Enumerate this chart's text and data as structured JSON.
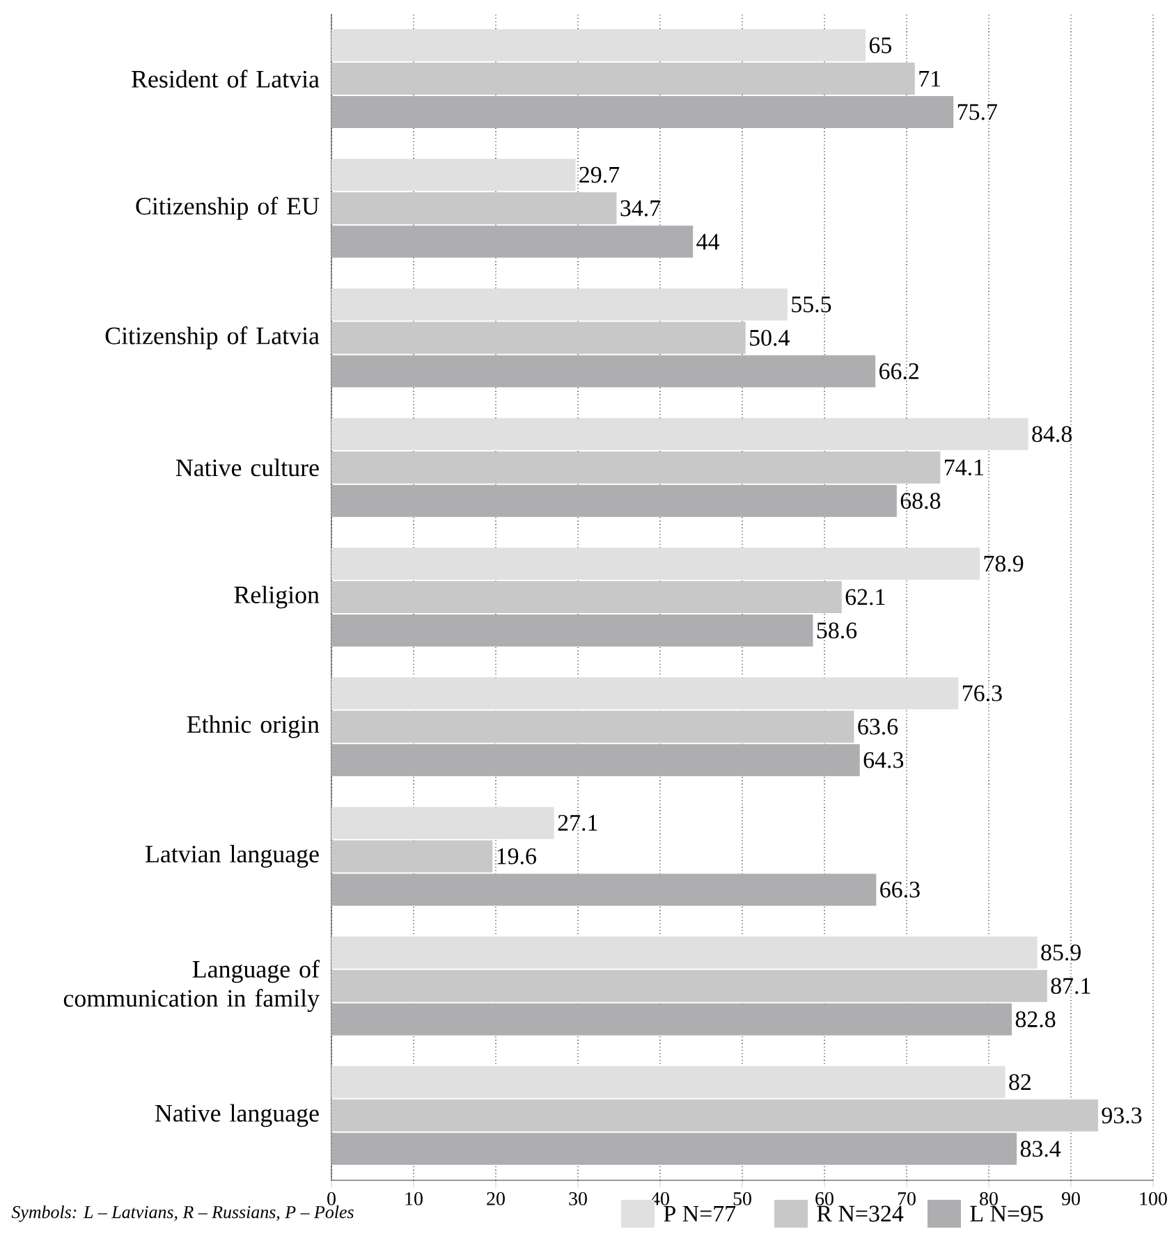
{
  "chart_data": {
    "type": "bar",
    "orientation": "horizontal",
    "categories": [
      "Resident of Latvia",
      "Citizenship of EU",
      "Citizenship of Latvia",
      "Native culture",
      "Religion",
      "Ethnic origin",
      "Latvian language",
      "Language of communication in family",
      "Native language"
    ],
    "series": [
      {
        "name": "P N=77",
        "color": "#e0e0e1",
        "values": [
          65,
          29.7,
          55.5,
          84.8,
          78.9,
          76.3,
          27.1,
          85.9,
          82
        ]
      },
      {
        "name": "R N=324",
        "color": "#c8c8c9",
        "values": [
          71,
          34.7,
          50.4,
          74.1,
          62.1,
          63.6,
          19.6,
          87.1,
          93.3
        ]
      },
      {
        "name": "L N=95",
        "color": "#aeaeb0",
        "values": [
          75.7,
          44,
          66.2,
          68.8,
          58.6,
          64.3,
          66.3,
          82.8,
          83.4
        ]
      }
    ],
    "xlim": [
      0,
      100
    ],
    "xticks": [
      0,
      10,
      20,
      30,
      40,
      50,
      60,
      70,
      80,
      90,
      100
    ],
    "grid": "x",
    "legend": "bottom",
    "data_labels": true,
    "annotations": [
      "*Symbols: L – Latvians, R – Russians, P – Poles*"
    ]
  }
}
